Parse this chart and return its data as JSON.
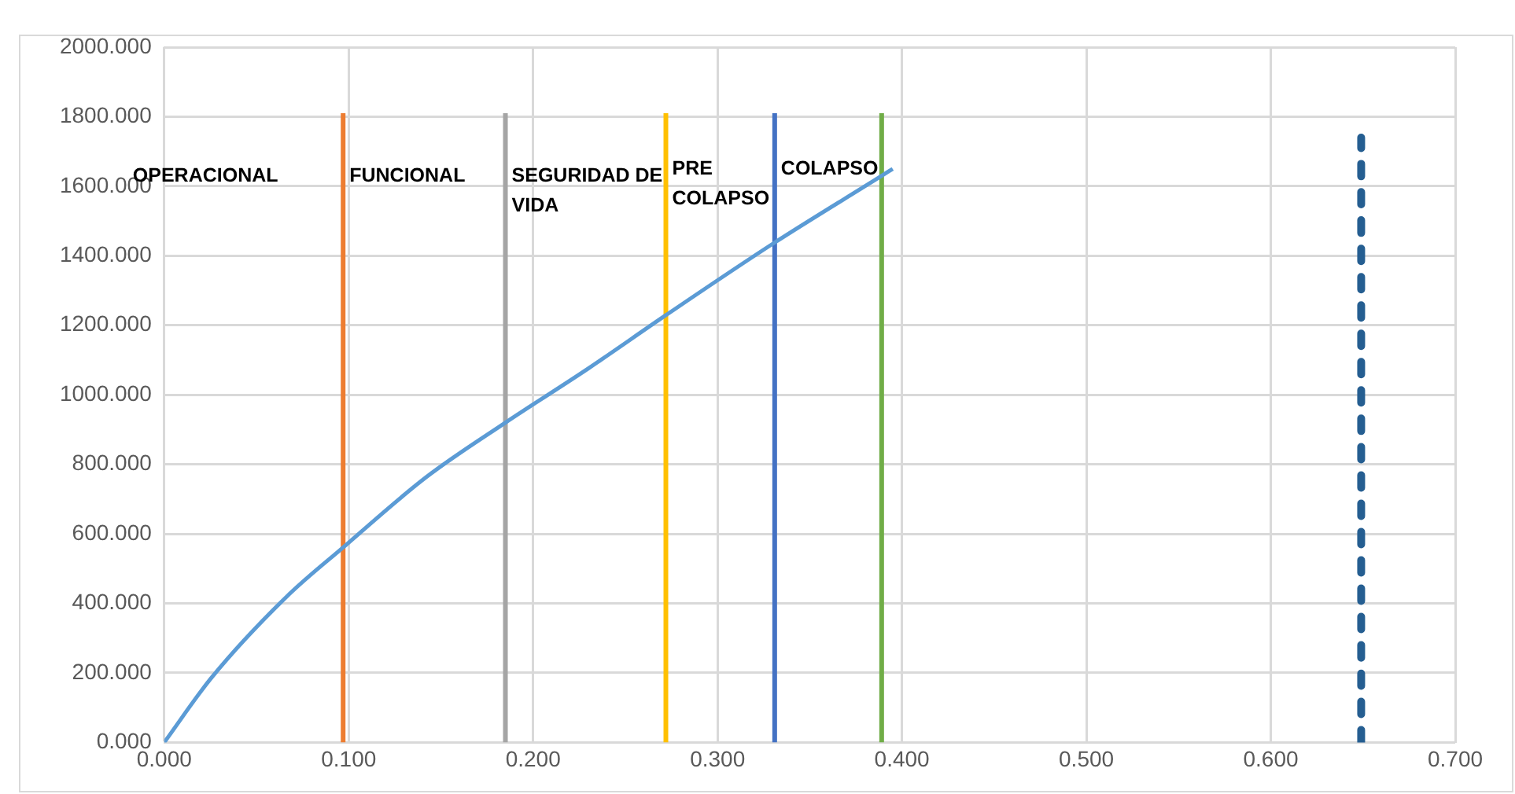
{
  "chart_data": {
    "type": "line",
    "xlim": [
      0,
      0.7
    ],
    "ylim": [
      0,
      2000
    ],
    "xticks": [
      {
        "value": 0,
        "label": "0.000"
      },
      {
        "value": 0.1,
        "label": "0.100"
      },
      {
        "value": 0.2,
        "label": "0.200"
      },
      {
        "value": 0.3,
        "label": "0.300"
      },
      {
        "value": 0.4,
        "label": "0.400"
      },
      {
        "value": 0.5,
        "label": "0.500"
      },
      {
        "value": 0.6,
        "label": "0.600"
      },
      {
        "value": 0.7,
        "label": "0.700"
      }
    ],
    "yticks": [
      {
        "value": 0,
        "label": "0.000"
      },
      {
        "value": 200,
        "label": "200.000"
      },
      {
        "value": 400,
        "label": "400.000"
      },
      {
        "value": 600,
        "label": "600.000"
      },
      {
        "value": 800,
        "label": "800.000"
      },
      {
        "value": 1000,
        "label": "1000.000"
      },
      {
        "value": 1200,
        "label": "1200.000"
      },
      {
        "value": 1400,
        "label": "1400.000"
      },
      {
        "value": 1600,
        "label": "1600.000"
      },
      {
        "value": 1800,
        "label": "1800.000"
      },
      {
        "value": 2000,
        "label": "2000.000"
      }
    ],
    "grid": true,
    "legend": false,
    "marker": "none",
    "series": [
      {
        "color": "#5b9bd5",
        "line_style": "solid",
        "x": [
          0,
          0.0256,
          0.0665,
          0.097,
          0.142,
          0.185,
          0.23,
          0.272,
          0.331,
          0.389,
          0.395
        ],
        "values": [
          0,
          186,
          420,
          561,
          763,
          920,
          1076,
          1229,
          1438,
          1630,
          1650
        ]
      },
      {
        "color": "#ed7d31",
        "line_style": "solid",
        "x": [
          0.097,
          0.097
        ],
        "values": [
          0,
          1810
        ]
      },
      {
        "color": "#a5a5a5",
        "line_style": "solid",
        "x": [
          0.185,
          0.185
        ],
        "values": [
          0,
          1810
        ]
      },
      {
        "color": "#ffc000",
        "line_style": "solid",
        "x": [
          0.272,
          0.272
        ],
        "values": [
          0,
          1810
        ]
      },
      {
        "color": "#4472c4",
        "line_style": "solid",
        "x": [
          0.331,
          0.331
        ],
        "values": [
          0,
          1810
        ]
      },
      {
        "color": "#70ad47",
        "line_style": "solid",
        "x": [
          0.389,
          0.389
        ],
        "values": [
          0,
          1810
        ]
      },
      {
        "color": "#255e91",
        "line_style": "dashed",
        "x": [
          0.649,
          0.649
        ],
        "values": [
          0,
          1740
        ]
      }
    ],
    "annotations": [
      "OPERACIONAL",
      {
        "text": "FUNCIONAL",
        "x": 0.097,
        "y": 1630
      },
      {
        "text": "SEGURIDAD DE VIDA",
        "x": 0.185,
        "y": 1630
      },
      {
        "text": "PRE COLAPSO",
        "x": 0.272,
        "y": 1650
      },
      {
        "text": "COLAPSO",
        "x": 0.331,
        "y": 1650
      }
    ]
  }
}
